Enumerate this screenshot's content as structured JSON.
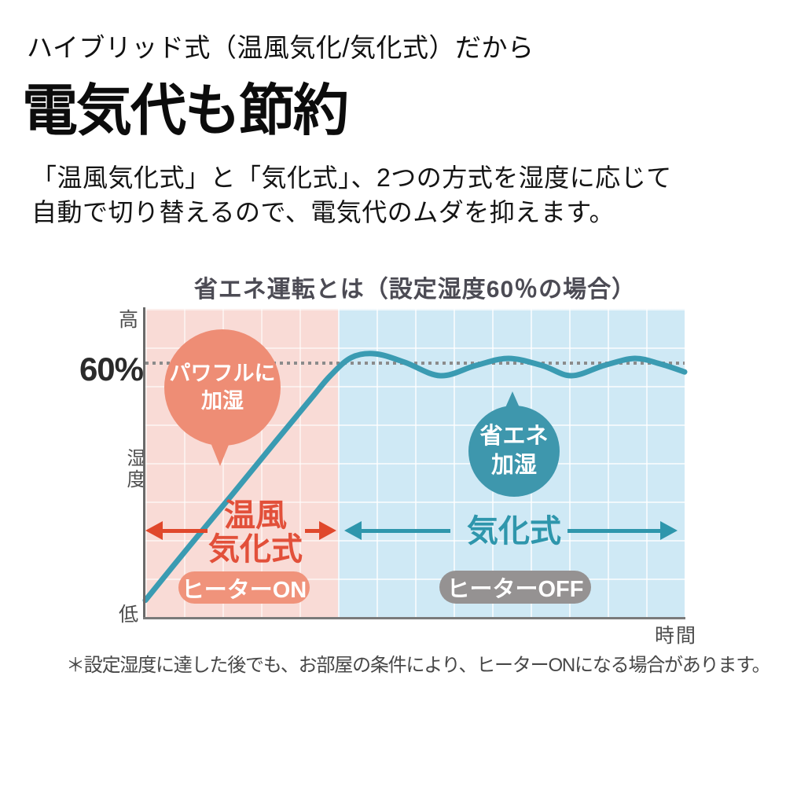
{
  "header": {
    "kicker": "ハイブリッド式（温風気化/気化式）だから",
    "headline": "電気代も節約",
    "body_line1": "「温風気化式」と「気化式」、2つの方式を湿度に応じて",
    "body_line2": "自動で切り替えるので、電気代のムダを抑えます。"
  },
  "chart": {
    "title": "省エネ運転とは（設定湿度60％の場合）",
    "axis": {
      "y_top": "高",
      "y_target": "60%",
      "y_mid": "湿度",
      "y_bottom": "低",
      "x_label": "時間"
    },
    "warm_zone": {
      "bubble_line1": "パワフルに",
      "bubble_line2": "加湿",
      "label_line1": "温風",
      "label_line2": "気化式",
      "badge": "ヒーターON"
    },
    "eco_zone": {
      "bubble_line1": "省エネ",
      "bubble_line2": "加湿",
      "label": "気化式",
      "badge": "ヒーターOFF"
    }
  },
  "footnote": "＊設定湿度に達した後でも、お部屋の条件により、ヒーターONになる場合があります。",
  "colors": {
    "warm_zone_bg": "#f9dbd6",
    "eco_zone_bg": "#cfe9f5",
    "curve": "#3a9bb2",
    "warm_bubble": "#ee8d75",
    "eco_bubble": "#3e97ad",
    "warm_accent": "#e0472b",
    "eco_accent": "#2e96ac",
    "badge_on": "#f0937b",
    "badge_off": "#959292",
    "target_dots": "#8b8b8b",
    "title_text": "#4c4b54"
  },
  "chart_data": {
    "type": "line",
    "title": "省エネ運転とは（設定湿度60％の場合）",
    "xlabel": "時間",
    "ylabel": "湿度",
    "y_axis": {
      "top_label": "高",
      "bottom_label": "低",
      "unit": "%"
    },
    "target_line": {
      "value": 60,
      "label": "60%",
      "style": "dotted"
    },
    "grid": true,
    "legend": false,
    "regions": [
      {
        "name": "温風気化式",
        "bubble": "パワフルに加湿",
        "badge": "ヒーターON",
        "x_range_pct": [
          0,
          35.7
        ],
        "background": "#f9dbd6"
      },
      {
        "name": "気化式",
        "bubble": "省エネ加湿",
        "badge": "ヒーターOFF",
        "x_range_pct": [
          35.7,
          100
        ],
        "background": "#cfe9f5"
      }
    ],
    "series": [
      {
        "name": "湿度",
        "color": "#3a9bb2",
        "x_pct": [
          0,
          8,
          16,
          24,
          30.6,
          34.3,
          38.2,
          42.6,
          48.1,
          54.7,
          61.2,
          67.3,
          73.6,
          79,
          85,
          90.7,
          95.5,
          100
        ],
        "y_humidity_pct": [
          4,
          16.6,
          28.9,
          41.4,
          51.6,
          57.2,
          61.5,
          62.4,
          60.4,
          57.2,
          59.6,
          61.3,
          59.6,
          57.2,
          59.6,
          61.3,
          60,
          58.1
        ]
      }
    ]
  }
}
